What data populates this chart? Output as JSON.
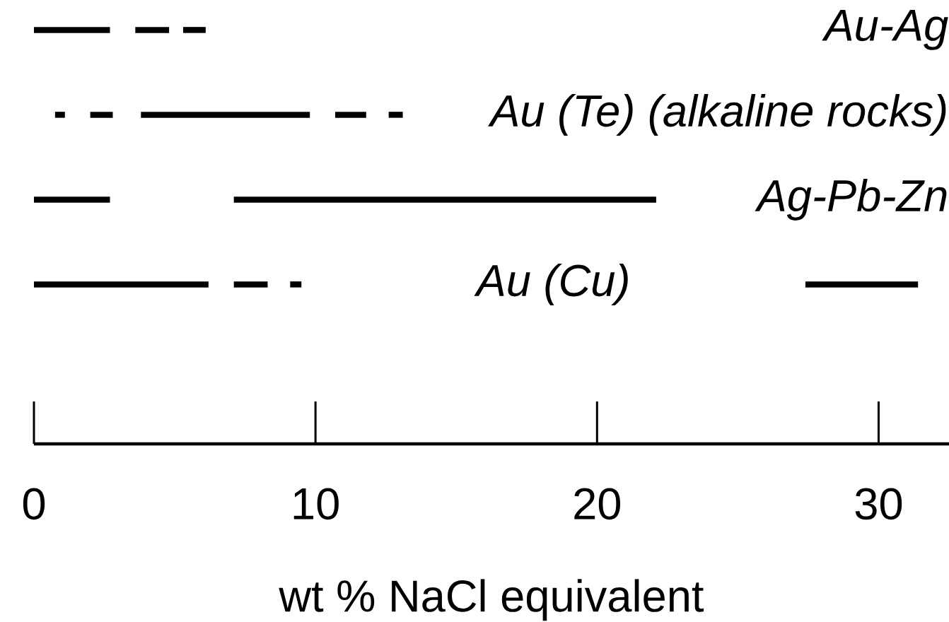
{
  "chart_data": {
    "type": "bar",
    "orientation": "horizontal",
    "xlabel": "wt % NaCl equivalent",
    "categories": [
      "Au-Ag",
      "Au (Te) (alkaline rocks)",
      "Ag-Pb-Zn",
      "Au (Cu)"
    ],
    "series": [
      {
        "color": "#000000",
        "base": [
          0,
          0.75,
          0,
          0
        ],
        "values": [
          2.7,
          0.35,
          2.7,
          6.2
        ]
      },
      {
        "color": "#000000",
        "base": [
          3.6,
          2.0,
          7.1,
          7.1
        ],
        "values": [
          1.2,
          0.8,
          15.0,
          1.2
        ]
      },
      {
        "color": "#000000",
        "base": [
          5.3,
          3.8,
          null,
          9.1
        ],
        "values": [
          0.8,
          6.0,
          null,
          0.4
        ]
      },
      {
        "color": "#000000",
        "base": [
          null,
          10.7,
          null,
          27.4
        ],
        "values": [
          null,
          1.1,
          null,
          4.0
        ]
      },
      {
        "color": "#000000",
        "base": [
          null,
          12.6,
          null,
          null
        ],
        "values": [
          null,
          0.5,
          null,
          null
        ]
      }
    ],
    "xlim": [
      0,
      32.5
    ],
    "xticks": [
      0,
      10,
      20,
      30
    ]
  }
}
